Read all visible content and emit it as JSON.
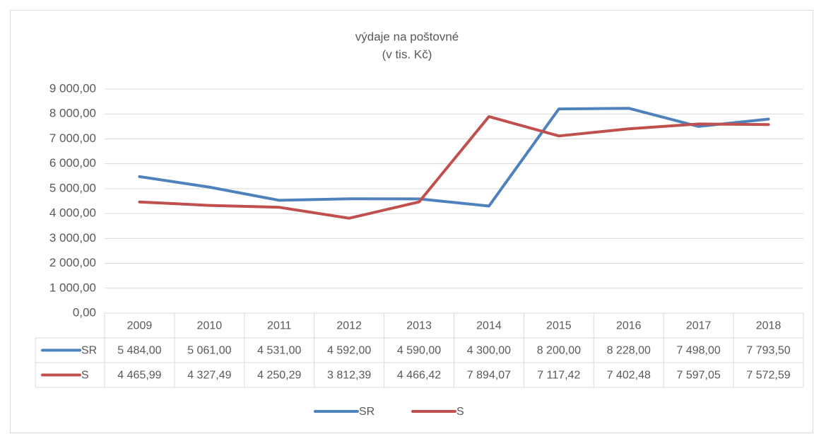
{
  "chart_data": {
    "type": "line",
    "title": "výdaje na poštovné",
    "subtitle": "(v tis. Kč)",
    "categories": [
      "2009",
      "2010",
      "2011",
      "2012",
      "2013",
      "2014",
      "2015",
      "2016",
      "2017",
      "2018"
    ],
    "series": [
      {
        "name": "SR",
        "color": "#4f81bd",
        "values": [
          5484,
          5061,
          4531,
          4592,
          4590,
          4300,
          8200,
          8228,
          7498,
          7793.5
        ],
        "value_labels": [
          "5 484,00",
          "5 061,00",
          "4 531,00",
          "4 592,00",
          "4 590,00",
          "4 300,00",
          "8 200,00",
          "8 228,00",
          "7 498,00",
          "7 793,50"
        ]
      },
      {
        "name": "S",
        "color": "#c0504d",
        "values": [
          4465.99,
          4327.49,
          4250.29,
          3812.39,
          4466.42,
          7894.07,
          7117.42,
          7402.48,
          7597.05,
          7572.59
        ],
        "value_labels": [
          "4 465,99",
          "4 327,49",
          "4 250,29",
          "3 812,39",
          "4 466,42",
          "7 894,07",
          "7 117,42",
          "7 402,48",
          "7 597,05",
          "7 572,59"
        ]
      }
    ],
    "ylim": [
      0,
      9000
    ],
    "yticks": [
      {
        "value": 0,
        "label": "0,00"
      },
      {
        "value": 1000,
        "label": "1 000,00"
      },
      {
        "value": 2000,
        "label": "2 000,00"
      },
      {
        "value": 3000,
        "label": "3 000,00"
      },
      {
        "value": 4000,
        "label": "4 000,00"
      },
      {
        "value": 5000,
        "label": "5 000,00"
      },
      {
        "value": 6000,
        "label": "6 000,00"
      },
      {
        "value": 7000,
        "label": "7 000,00"
      },
      {
        "value": 8000,
        "label": "8 000,00"
      },
      {
        "value": 9000,
        "label": "9 000,00"
      }
    ],
    "grid": true,
    "legend": "bottom"
  }
}
